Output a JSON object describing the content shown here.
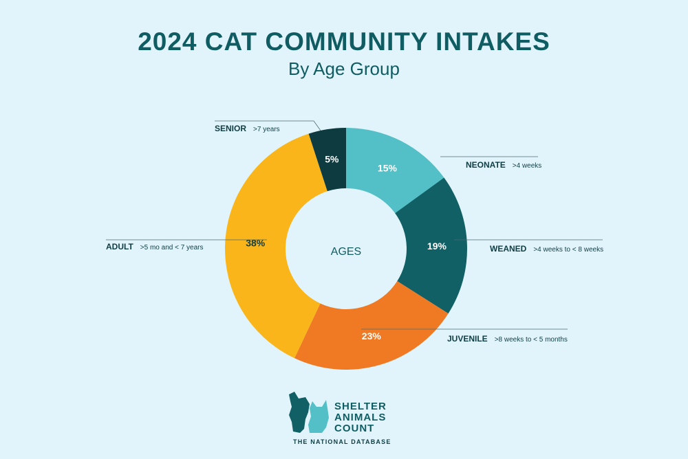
{
  "header": {
    "title": "2024 CAT COMMUNITY INTAKES",
    "subtitle": "By Age Group"
  },
  "chart_data": {
    "type": "pie",
    "title": "2024 CAT COMMUNITY INTAKES",
    "subtitle": "By Age Group",
    "center_label": "AGES",
    "unit": "%",
    "slices": [
      {
        "label": "NEONATE",
        "sublabel": ">4 weeks",
        "value": 15,
        "color": "#52c0c6",
        "text_color": "#ffffff"
      },
      {
        "label": "WEANED",
        "sublabel": ">4 weeks to < 8 weeks",
        "value": 19,
        "color": "#106065",
        "text_color": "#ffffff"
      },
      {
        "label": "JUVENILE",
        "sublabel": ">8 weeks to < 5 months",
        "value": 23,
        "color": "#f07a24",
        "text_color": "#ffffff"
      },
      {
        "label": "ADULT",
        "sublabel": ">5 mo and < 7 years",
        "value": 38,
        "color": "#f9b51a",
        "text_color": "#0f3d44"
      },
      {
        "label": "SENIOR",
        "sublabel": ">7 years",
        "value": 5,
        "color": "#0d3b40",
        "text_color": "#ffffff"
      }
    ]
  },
  "logo": {
    "lines": [
      "SHELTER",
      "ANIMALS",
      "COUNT"
    ],
    "tagline": "THE NATIONAL DATABASE",
    "colors": {
      "dog": "#106065",
      "cat": "#52c0c6"
    }
  }
}
